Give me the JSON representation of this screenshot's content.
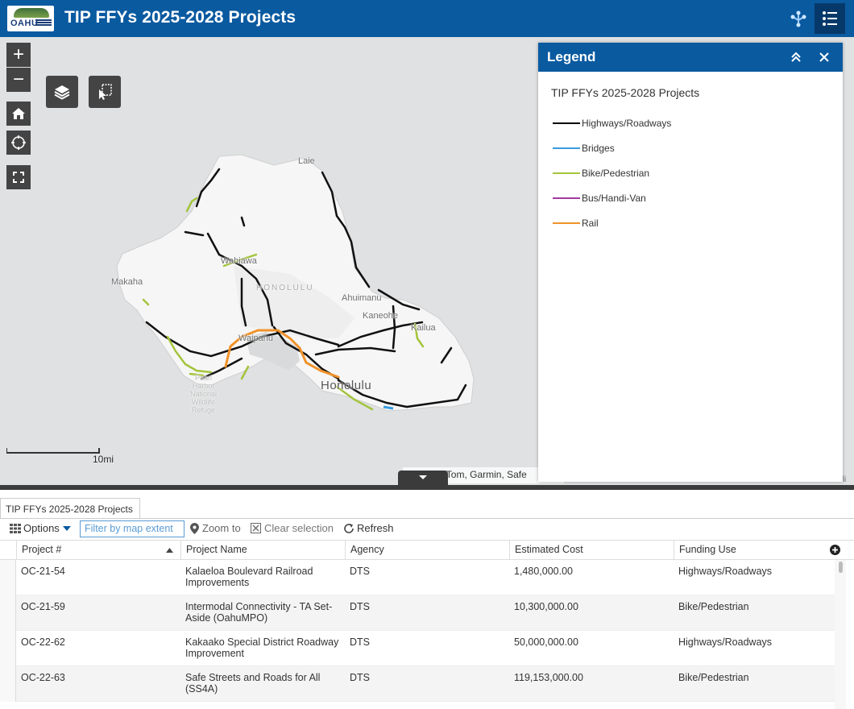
{
  "app": {
    "title": "TIP FFYs 2025-2028 Projects",
    "logo_text": "OAHU"
  },
  "map": {
    "places": {
      "laie": "Laie",
      "wahiawa": "Wahiawa",
      "makaha": "Makaha",
      "honolulu_area": "HONOLULU",
      "ahuimanu": "Ahuimanu",
      "kaneohe": "Kaneohe",
      "kailua": "Kailua",
      "waipahu": "Waipahu",
      "honolulu": "Honolulu",
      "pearl": "Pearl",
      "harbor": "Harbor",
      "national": "National",
      "wildlife": "Wildlife",
      "refuge": "Refuge"
    },
    "scale_label": "10mi",
    "attribution": "Esri, TomTom, Garmin, Safe",
    "corner_text": "Kuali"
  },
  "legend": {
    "title": "Legend",
    "layer_title": "TIP FFYs 2025-2028 Projects",
    "items": [
      {
        "label": "Highways/Roadways",
        "color": "#000000"
      },
      {
        "label": "Bridges",
        "color": "#3a9be0"
      },
      {
        "label": "Bike/Pedestrian",
        "color": "#a4c43c"
      },
      {
        "label": "Bus/Handi-Van",
        "color": "#a03aa0"
      },
      {
        "label": "Rail",
        "color": "#f0922a"
      }
    ]
  },
  "table": {
    "tab_label": "TIP FFYs 2025-2028 Projects",
    "toolbar": {
      "options": "Options",
      "filter": "Filter by map extent",
      "zoom_to": "Zoom to",
      "clear_selection": "Clear selection",
      "refresh": "Refresh"
    },
    "columns": [
      "Project #",
      "Project Name",
      "Agency",
      "Estimated Cost",
      "Funding Use"
    ],
    "rows": [
      {
        "project": "OC-21-54",
        "name": "Kalaeloa Boulevard Railroad Improvements",
        "agency": "DTS",
        "cost": "1,480,000.00",
        "use": "Highways/Roadways"
      },
      {
        "project": "OC-21-59",
        "name": "Intermodal Connectivity - TA Set-Aside (OahuMPO)",
        "agency": "DTS",
        "cost": "10,300,000.00",
        "use": "Bike/Pedestrian"
      },
      {
        "project": "OC-22-62",
        "name": "Kakaako Special District Roadway Improvement",
        "agency": "DTS",
        "cost": "50,000,000.00",
        "use": "Highways/Roadways"
      },
      {
        "project": "OC-22-63",
        "name": "Safe Streets and Roads for All (SS4A)",
        "agency": "DTS",
        "cost": "119,153,000.00",
        "use": "Bike/Pedestrian"
      }
    ]
  }
}
